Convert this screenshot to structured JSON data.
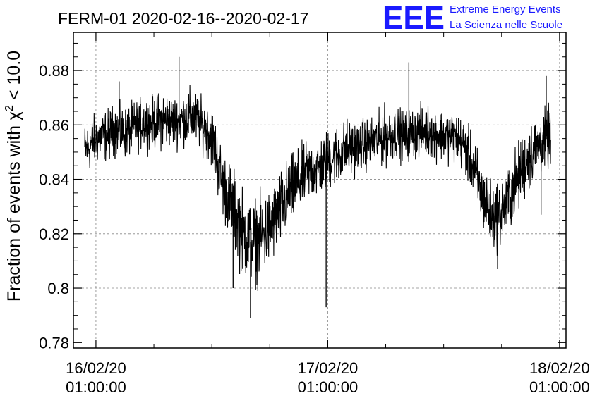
{
  "header": {
    "title": "FERM-01 2020-02-16--2020-02-17"
  },
  "logo": {
    "letters": "EEE",
    "line1": "Extreme Energy Events",
    "line2": "La Scienza nelle Scuole",
    "color": "#1a1aff"
  },
  "chart_data": {
    "type": "line",
    "title": "FERM-01 2020-02-16--2020-02-17",
    "xlabel": "",
    "ylabel_prefix": "Fraction of events with ",
    "ylabel_symbol": "χ",
    "ylabel_sup": "2",
    "ylabel_suffix": " < 10.0",
    "xlim": [
      "2020-02-15 22:40",
      "2020-02-18 01:40"
    ],
    "ylim": [
      0.778,
      0.894
    ],
    "xticks": [
      {
        "date": "16/02/20",
        "time": "01:00:00",
        "x": "2020-02-16 01:00"
      },
      {
        "date": "17/02/20",
        "time": "01:00:00",
        "x": "2020-02-17 01:00"
      },
      {
        "date": "18/02/20",
        "time": "01:00:00",
        "x": "2020-02-18 01:00"
      }
    ],
    "yticks": [
      {
        "value": 0.78,
        "label": "0.78"
      },
      {
        "value": 0.8,
        "label": "0.8"
      },
      {
        "value": 0.82,
        "label": "0.82"
      },
      {
        "value": 0.84,
        "label": "0.84"
      },
      {
        "value": 0.86,
        "label": "0.86"
      },
      {
        "value": 0.88,
        "label": "0.88"
      }
    ],
    "grid": true,
    "line_color": "#000000",
    "series": [
      {
        "x": [
          "2020-02-16 00:00",
          "2020-02-16 01:00",
          "2020-02-16 02:00",
          "2020-02-16 03:00",
          "2020-02-16 04:00",
          "2020-02-16 05:00",
          "2020-02-16 06:00",
          "2020-02-16 07:00",
          "2020-02-16 08:00",
          "2020-02-16 09:00",
          "2020-02-16 10:00",
          "2020-02-16 11:00",
          "2020-02-16 12:00",
          "2020-02-16 13:00",
          "2020-02-16 14:00",
          "2020-02-16 15:00",
          "2020-02-16 16:00",
          "2020-02-16 17:00",
          "2020-02-16 18:00",
          "2020-02-16 19:00",
          "2020-02-16 20:00",
          "2020-02-16 21:00",
          "2020-02-16 22:00",
          "2020-02-16 23:00",
          "2020-02-17 00:00",
          "2020-02-17 01:00",
          "2020-02-17 02:00",
          "2020-02-17 03:00",
          "2020-02-17 04:00",
          "2020-02-17 05:00",
          "2020-02-17 06:00",
          "2020-02-17 07:00",
          "2020-02-17 08:00",
          "2020-02-17 09:00",
          "2020-02-17 10:00",
          "2020-02-17 11:00",
          "2020-02-17 12:00",
          "2020-02-17 13:00",
          "2020-02-17 14:00",
          "2020-02-17 15:00",
          "2020-02-17 16:00",
          "2020-02-17 17:00",
          "2020-02-17 18:00",
          "2020-02-17 19:00",
          "2020-02-17 20:00",
          "2020-02-17 21:00",
          "2020-02-17 22:00",
          "2020-02-17 23:00",
          "2020-02-18 00:00"
        ],
        "y": [
          0.851,
          0.855,
          0.856,
          0.858,
          0.857,
          0.859,
          0.861,
          0.861,
          0.862,
          0.861,
          0.862,
          0.863,
          0.86,
          0.856,
          0.84,
          0.831,
          0.822,
          0.817,
          0.818,
          0.822,
          0.828,
          0.835,
          0.839,
          0.843,
          0.844,
          0.847,
          0.849,
          0.851,
          0.852,
          0.853,
          0.854,
          0.856,
          0.857,
          0.856,
          0.857,
          0.858,
          0.857,
          0.856,
          0.856,
          0.853,
          0.845,
          0.834,
          0.826,
          0.828,
          0.835,
          0.843,
          0.849,
          0.853,
          0.856
        ],
        "spread": [
          0.006,
          0.006,
          0.006,
          0.006,
          0.006,
          0.006,
          0.006,
          0.006,
          0.007,
          0.006,
          0.006,
          0.007,
          0.006,
          0.007,
          0.008,
          0.009,
          0.01,
          0.01,
          0.01,
          0.009,
          0.009,
          0.008,
          0.008,
          0.007,
          0.007,
          0.007,
          0.007,
          0.007,
          0.006,
          0.006,
          0.006,
          0.007,
          0.006,
          0.006,
          0.006,
          0.006,
          0.006,
          0.006,
          0.006,
          0.006,
          0.007,
          0.008,
          0.008,
          0.008,
          0.008,
          0.008,
          0.008,
          0.007,
          0.007
        ]
      }
    ],
    "spikes": [
      {
        "x": "2020-02-16 03:24",
        "y": 0.876
      },
      {
        "x": "2020-02-16 09:36",
        "y": 0.885
      },
      {
        "x": "2020-02-16 17:00",
        "y": 0.789
      },
      {
        "x": "2020-02-16 15:12",
        "y": 0.8
      },
      {
        "x": "2020-02-17 00:50",
        "y": 0.793
      },
      {
        "x": "2020-02-17 09:24",
        "y": 0.883
      },
      {
        "x": "2020-02-17 18:35",
        "y": 0.807
      },
      {
        "x": "2020-02-17 23:05",
        "y": 0.827
      },
      {
        "x": "2020-02-17 23:37",
        "y": 0.878
      }
    ]
  }
}
